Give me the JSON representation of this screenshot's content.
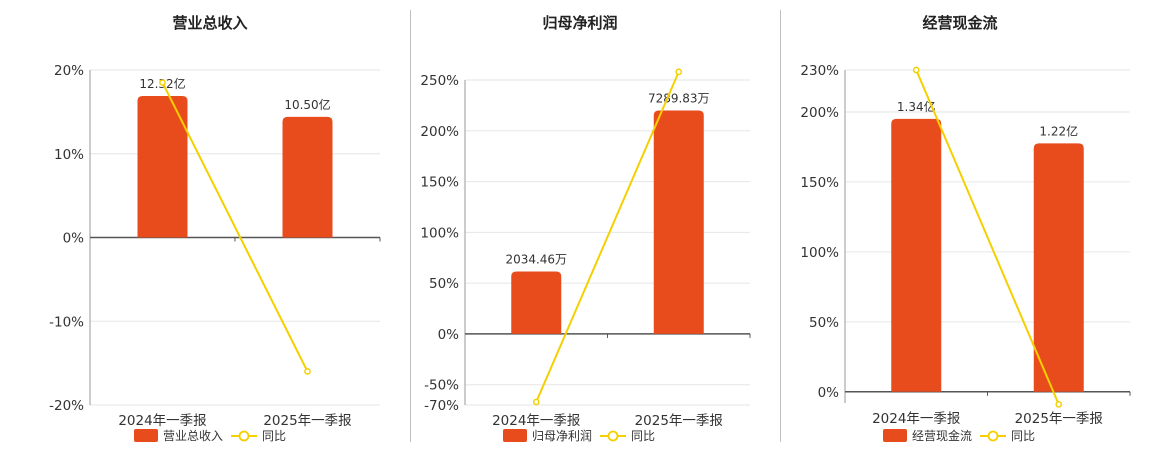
{
  "chart_data": [
    {
      "type": "bar",
      "title": "营业总收入",
      "categories": [
        "2024年一季报",
        "2025年一季报"
      ],
      "bar_series": {
        "name": "营业总收入",
        "values": [
          12.32,
          10.5
        ],
        "labels": [
          "12.32亿",
          "10.50亿"
        ]
      },
      "line_series": {
        "name": "同比",
        "values": [
          18.5,
          -16.0
        ]
      },
      "bar_ylim": [
        0,
        14.58
      ],
      "ylim": [
        -20,
        20
      ],
      "yticks": [
        20,
        10,
        0,
        -10,
        -20
      ],
      "ytick_labels": [
        "20%",
        "10%",
        "0%",
        "-10%",
        "-20%"
      ],
      "legend_position": "bottom"
    },
    {
      "type": "bar",
      "title": "归母净利润",
      "categories": [
        "2024年一季报",
        "2025年一季报"
      ],
      "bar_series": {
        "name": "归母净利润",
        "values": [
          2034.46,
          7289.83
        ],
        "labels": [
          "2034.46万",
          "7289.83万"
        ]
      },
      "line_series": {
        "name": "同比",
        "values": [
          -67,
          258
        ]
      },
      "bar_ylim": [
        0,
        8283
      ],
      "ylim": [
        -70,
        250
      ],
      "yticks": [
        250,
        200,
        150,
        100,
        50,
        0,
        -50,
        -70
      ],
      "ytick_labels": [
        "250%",
        "200%",
        "150%",
        "100%",
        "50%",
        "0%",
        "-50%",
        "-70%"
      ],
      "legend_position": "bottom"
    },
    {
      "type": "bar",
      "title": "经营现金流",
      "categories": [
        "2024年一季报",
        "2025年一季报"
      ],
      "bar_series": {
        "name": "经营现金流",
        "values": [
          1.34,
          1.22
        ],
        "labels": [
          "1.34亿",
          "1.22亿"
        ]
      },
      "line_series": {
        "name": "同比",
        "values": [
          230,
          -9
        ]
      },
      "bar_ylim": [
        0,
        1.58
      ],
      "ylim": [
        -8,
        230
      ],
      "yticks": [
        230,
        200,
        150,
        100,
        50,
        0
      ],
      "ytick_labels": [
        "230%",
        "200%",
        "150%",
        "100%",
        "50%",
        "0%"
      ],
      "legend_position": "bottom"
    }
  ],
  "colors": {
    "bar": "#e84b1c",
    "line": "#f5d000",
    "grid": "#e6e6e6",
    "axis": "#555555"
  }
}
